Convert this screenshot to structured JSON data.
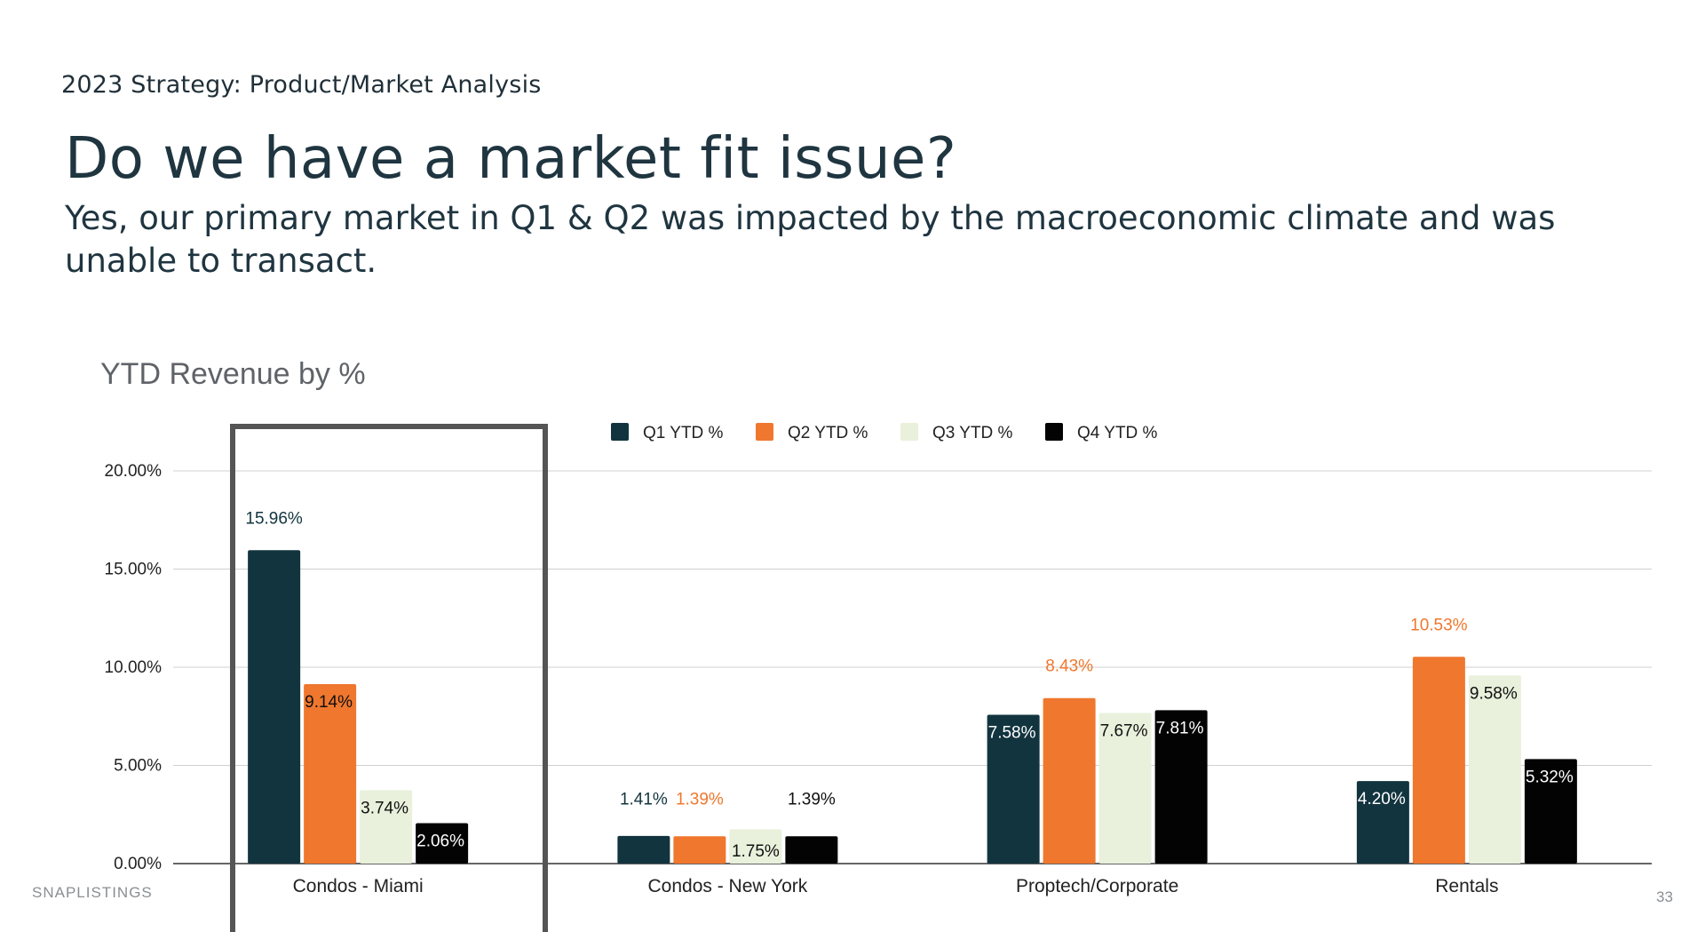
{
  "slide": {
    "kicker": "2023 Strategy: Product/Market Analysis",
    "headline": "Do we have a market fit issue?",
    "subhead": "Yes, our primary market in Q1 & Q2 was impacted by the macroeconomic climate and was unable to transact.",
    "footer_brand": "SNAPLISTINGS",
    "page_number": "33"
  },
  "chart_data": {
    "type": "bar",
    "title": "YTD Revenue by %",
    "categories": [
      "Condos - Miami",
      "Condos - New York",
      "Proptech/Corporate",
      "Rentals"
    ],
    "series": [
      {
        "name": "Q1 YTD %",
        "color": "#12343f",
        "values": [
          15.96,
          1.41,
          7.58,
          4.2
        ],
        "labels": [
          "15.96%",
          "1.41%",
          "7.58%",
          "4.20%"
        ]
      },
      {
        "name": "Q2 YTD %",
        "color": "#f0772e",
        "values": [
          9.14,
          1.39,
          8.43,
          10.53
        ],
        "labels": [
          "9.14%",
          "1.39%",
          "8.43%",
          "10.53%"
        ]
      },
      {
        "name": "Q3 YTD %",
        "color": "#e9f1dc",
        "values": [
          3.74,
          1.75,
          7.67,
          9.58
        ],
        "labels": [
          "3.74%",
          "1.75%",
          "7.67%",
          "9.58%"
        ]
      },
      {
        "name": "Q4 YTD %",
        "color": "#030303",
        "values": [
          2.06,
          1.39,
          7.81,
          5.32
        ],
        "labels": [
          "2.06%",
          "1.39%",
          "7.81%",
          "5.32%"
        ]
      }
    ],
    "y_ticks": [
      "0.00%",
      "5.00%",
      "10.00%",
      "15.00%",
      "20.00%"
    ],
    "ylim": [
      0,
      20
    ],
    "legend_position": "top",
    "grid": true,
    "highlighted_category": "Condos - Miami"
  }
}
